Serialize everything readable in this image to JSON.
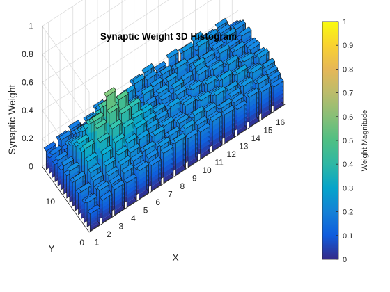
{
  "chart_data": {
    "type": "bar3",
    "title": "Synaptic Weight 3D Histogram",
    "xlabel": "X",
    "ylabel": "Y",
    "zlabel": "Synaptic Weight",
    "xlim": [
      0.5,
      16.5
    ],
    "ylim": [
      0,
      16
    ],
    "zlim": [
      0,
      1
    ],
    "x_ticks": [
      "1",
      "2",
      "3",
      "4",
      "5",
      "6",
      "7",
      "8",
      "9",
      "10",
      "11",
      "12",
      "13",
      "14",
      "15",
      "16"
    ],
    "y_ticks": [
      "0",
      "10"
    ],
    "z_ticks": [
      "0",
      "0.2",
      "0.4",
      "0.6",
      "0.8",
      "1"
    ],
    "grid": true,
    "colormap": "parula",
    "colorbar": {
      "label": "Weight Magnitude",
      "limits": [
        0,
        1
      ],
      "ticks": [
        "0",
        "0.1",
        "0.2",
        "0.3",
        "0.4",
        "0.5",
        "0.6",
        "0.7",
        "0.8",
        "0.9",
        "1"
      ]
    },
    "weights": [
      [
        0.13,
        0.15,
        0.17,
        0.12,
        0.2,
        0.18,
        0.16,
        0.21,
        0.23,
        0.19,
        0.22,
        0.2,
        0.23,
        0.19,
        0.21,
        0.14
      ],
      [
        0.11,
        0.18,
        0.16,
        0.2,
        0.22,
        0.17,
        0.15,
        0.24,
        0.21,
        0.18,
        0.16,
        0.24,
        0.19,
        0.22,
        0.2,
        0.17
      ],
      [
        0.16,
        0.14,
        0.2,
        0.23,
        0.19,
        0.21,
        0.25,
        0.18,
        0.16,
        0.22,
        0.2,
        0.17,
        0.25,
        0.18,
        0.16,
        0.2
      ],
      [
        0.12,
        0.2,
        0.24,
        0.21,
        0.17,
        0.23,
        0.2,
        0.16,
        0.22,
        0.19,
        0.24,
        0.21,
        0.18,
        0.2,
        0.23,
        0.15
      ],
      [
        0.18,
        0.23,
        0.27,
        0.3,
        0.22,
        0.19,
        0.21,
        0.25,
        0.18,
        0.23,
        0.16,
        0.2,
        0.22,
        0.17,
        0.19,
        0.21
      ],
      [
        0.14,
        0.26,
        0.32,
        0.36,
        0.29,
        0.24,
        0.18,
        0.2,
        0.23,
        0.17,
        0.21,
        0.25,
        0.19,
        0.23,
        0.18,
        0.16
      ],
      [
        0.2,
        0.28,
        0.38,
        0.44,
        0.4,
        0.3,
        0.22,
        0.17,
        0.21,
        0.24,
        0.18,
        0.22,
        0.2,
        0.16,
        0.22,
        0.19
      ],
      [
        0.16,
        0.33,
        0.42,
        0.48,
        0.45,
        0.36,
        0.27,
        0.21,
        0.18,
        0.22,
        0.2,
        0.17,
        0.23,
        0.21,
        0.17,
        0.2
      ],
      [
        0.22,
        0.3,
        0.46,
        0.58,
        0.5,
        0.39,
        0.29,
        0.24,
        0.2,
        0.19,
        0.23,
        0.21,
        0.18,
        0.24,
        0.2,
        0.17
      ],
      [
        0.17,
        0.35,
        0.44,
        0.49,
        0.43,
        0.34,
        0.26,
        0.22,
        0.25,
        0.21,
        0.18,
        0.24,
        0.21,
        0.19,
        0.23,
        0.21
      ],
      [
        0.21,
        0.29,
        0.37,
        0.41,
        0.36,
        0.3,
        0.24,
        0.2,
        0.18,
        0.23,
        0.21,
        0.19,
        0.25,
        0.22,
        0.18,
        0.23
      ],
      [
        0.15,
        0.24,
        0.31,
        0.34,
        0.28,
        0.25,
        0.21,
        0.23,
        0.2,
        0.17,
        0.24,
        0.22,
        0.19,
        0.26,
        0.21,
        0.18
      ],
      [
        0.19,
        0.21,
        0.26,
        0.28,
        0.24,
        0.19,
        0.25,
        0.18,
        0.22,
        0.2,
        0.19,
        0.25,
        0.23,
        0.2,
        0.24,
        0.22
      ],
      [
        0.14,
        0.18,
        0.22,
        0.24,
        0.21,
        0.23,
        0.2,
        0.22,
        0.19,
        0.25,
        0.22,
        0.18,
        0.21,
        0.23,
        0.19,
        0.2
      ],
      [
        0.17,
        0.2,
        0.19,
        0.21,
        0.18,
        0.2,
        0.23,
        0.19,
        0.24,
        0.21,
        0.19,
        0.22,
        0.2,
        0.18,
        0.22,
        0.19
      ],
      [
        0.12,
        0.16,
        0.18,
        0.17,
        0.2,
        0.18,
        0.21,
        0.23,
        0.2,
        0.19,
        0.21,
        0.2,
        0.18,
        0.21,
        0.19,
        0.17
      ]
    ]
  }
}
